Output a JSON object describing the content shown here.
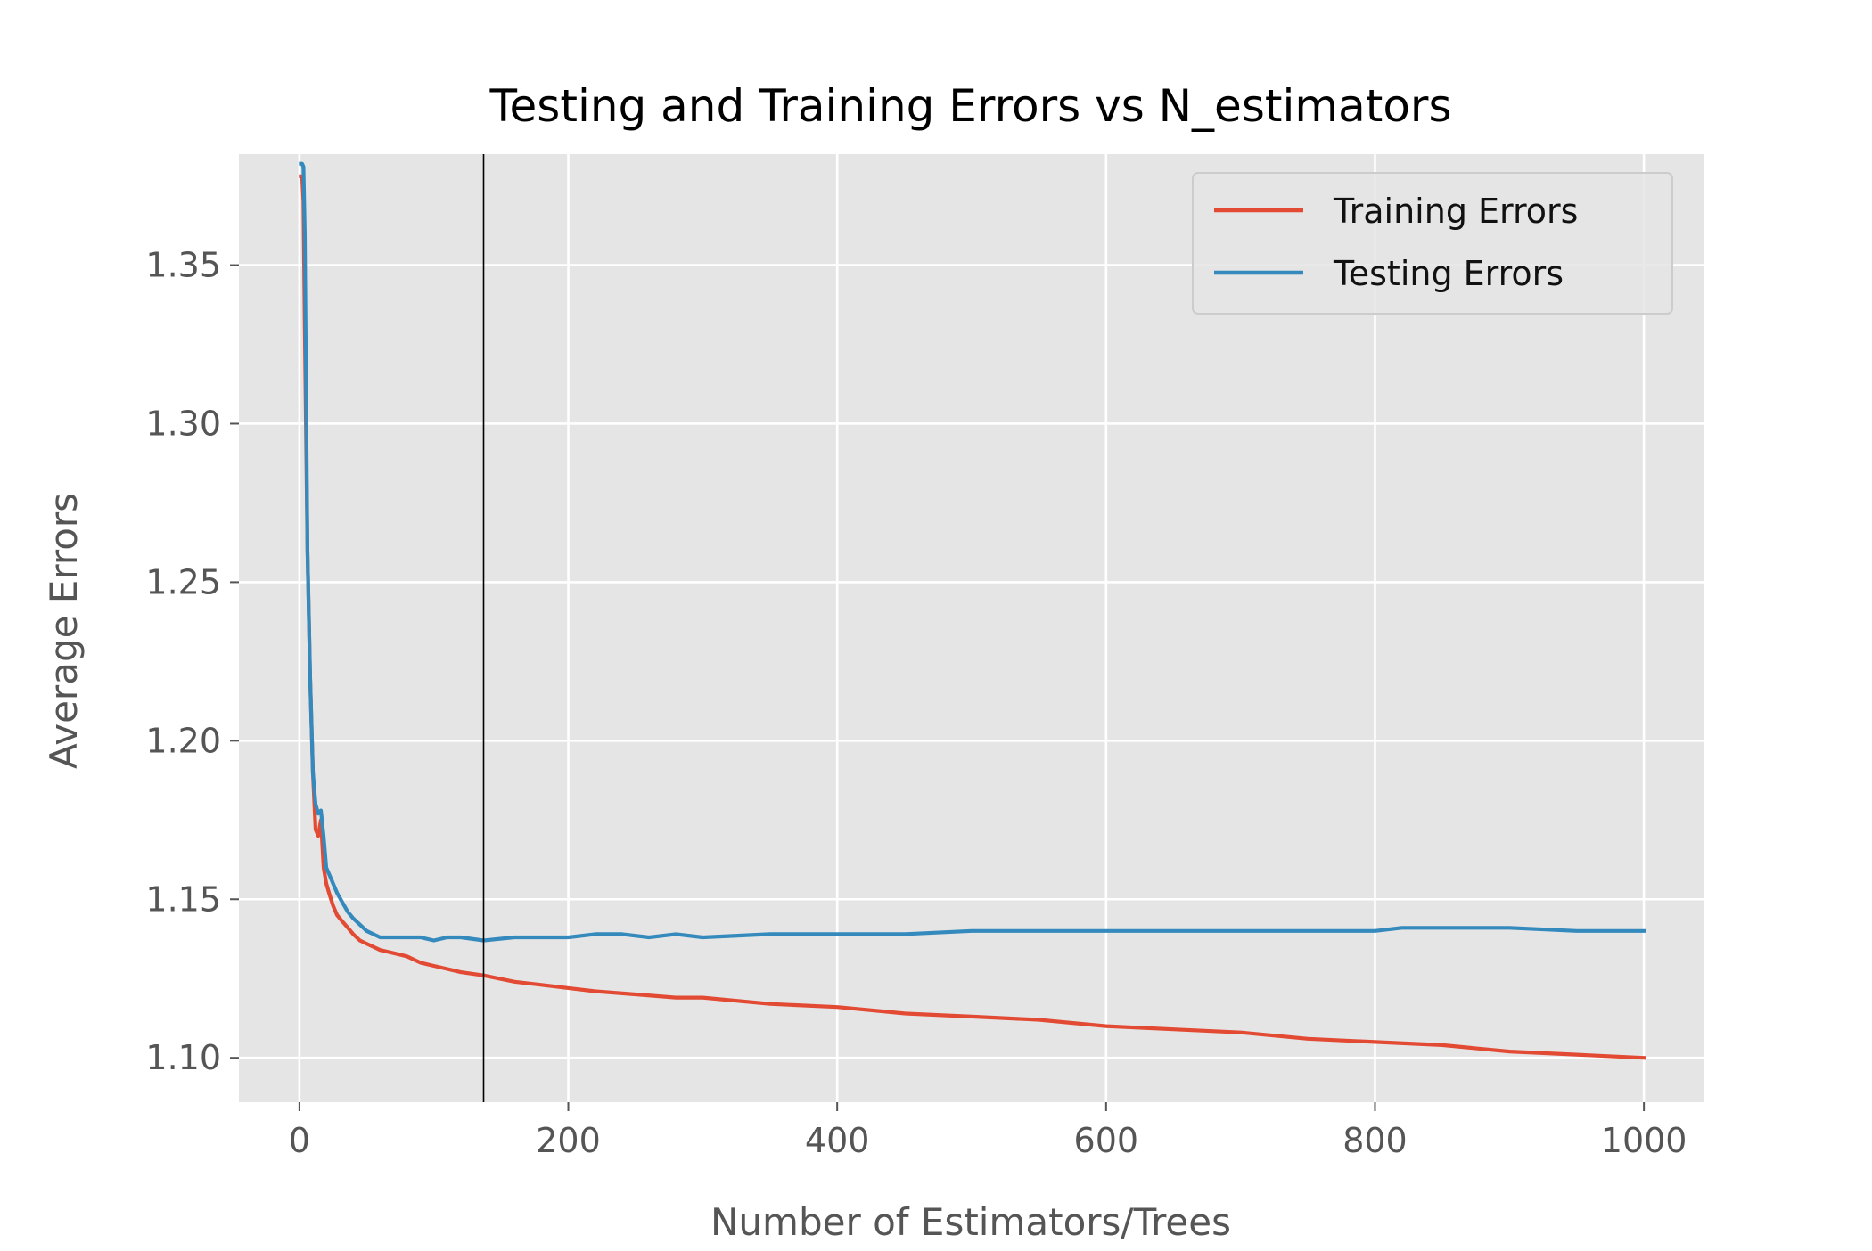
{
  "chart_data": {
    "type": "line",
    "title": "Testing and Training Errors vs N_estimators",
    "xlabel": "Number of Estimators/Trees",
    "ylabel": "Average Errors",
    "xlim": [
      -45,
      1045
    ],
    "ylim": [
      1.086,
      1.385
    ],
    "xticks": [
      0,
      200,
      400,
      600,
      800,
      1000
    ],
    "xtick_labels": [
      "0",
      "200",
      "400",
      "600",
      "800",
      "1000"
    ],
    "yticks": [
      1.1,
      1.15,
      1.2,
      1.25,
      1.3,
      1.35
    ],
    "ytick_labels": [
      "1.10",
      "1.15",
      "1.20",
      "1.25",
      "1.30",
      "1.35"
    ],
    "grid": true,
    "legend_position": "top-right",
    "vline_x": 137,
    "colors": {
      "plot_background": "#e5e5e5",
      "grid": "#ffffff",
      "tick_text": "#555555",
      "axis_label_text": "#555555",
      "title_text": "#000000",
      "vline": "#000000"
    },
    "series": [
      {
        "name": "Training Errors",
        "color": "#e24a33",
        "x": [
          1,
          2,
          3,
          4,
          6,
          8,
          10,
          12,
          14,
          16,
          18,
          20,
          22,
          25,
          28,
          32,
          36,
          40,
          45,
          50,
          55,
          60,
          70,
          80,
          90,
          100,
          110,
          120,
          137,
          160,
          180,
          200,
          220,
          250,
          280,
          300,
          350,
          400,
          450,
          500,
          550,
          600,
          650,
          700,
          750,
          800,
          850,
          900,
          950,
          1000
        ],
        "y": [
          1.378,
          1.378,
          1.37,
          1.33,
          1.26,
          1.22,
          1.19,
          1.172,
          1.17,
          1.175,
          1.16,
          1.155,
          1.152,
          1.148,
          1.145,
          1.143,
          1.141,
          1.139,
          1.137,
          1.136,
          1.135,
          1.134,
          1.133,
          1.132,
          1.13,
          1.129,
          1.128,
          1.127,
          1.126,
          1.124,
          1.123,
          1.122,
          1.121,
          1.12,
          1.119,
          1.119,
          1.117,
          1.116,
          1.114,
          1.113,
          1.112,
          1.11,
          1.109,
          1.108,
          1.106,
          1.105,
          1.104,
          1.102,
          1.101,
          1.1
        ]
      },
      {
        "name": "Testing Errors",
        "color": "#348abd",
        "x": [
          1,
          2,
          3,
          4,
          6,
          8,
          10,
          12,
          14,
          16,
          18,
          20,
          22,
          25,
          28,
          32,
          36,
          40,
          45,
          50,
          55,
          60,
          70,
          80,
          90,
          100,
          110,
          120,
          137,
          160,
          180,
          200,
          220,
          240,
          260,
          280,
          300,
          350,
          400,
          450,
          500,
          550,
          600,
          650,
          700,
          750,
          800,
          820,
          850,
          900,
          950,
          1000
        ],
        "y": [
          1.382,
          1.382,
          1.381,
          1.36,
          1.26,
          1.22,
          1.19,
          1.18,
          1.177,
          1.178,
          1.17,
          1.16,
          1.158,
          1.155,
          1.152,
          1.149,
          1.146,
          1.144,
          1.142,
          1.14,
          1.139,
          1.138,
          1.138,
          1.138,
          1.138,
          1.137,
          1.138,
          1.138,
          1.137,
          1.138,
          1.138,
          1.138,
          1.139,
          1.139,
          1.138,
          1.139,
          1.138,
          1.139,
          1.139,
          1.139,
          1.14,
          1.14,
          1.14,
          1.14,
          1.14,
          1.14,
          1.14,
          1.141,
          1.141,
          1.141,
          1.14,
          1.14
        ]
      }
    ]
  }
}
